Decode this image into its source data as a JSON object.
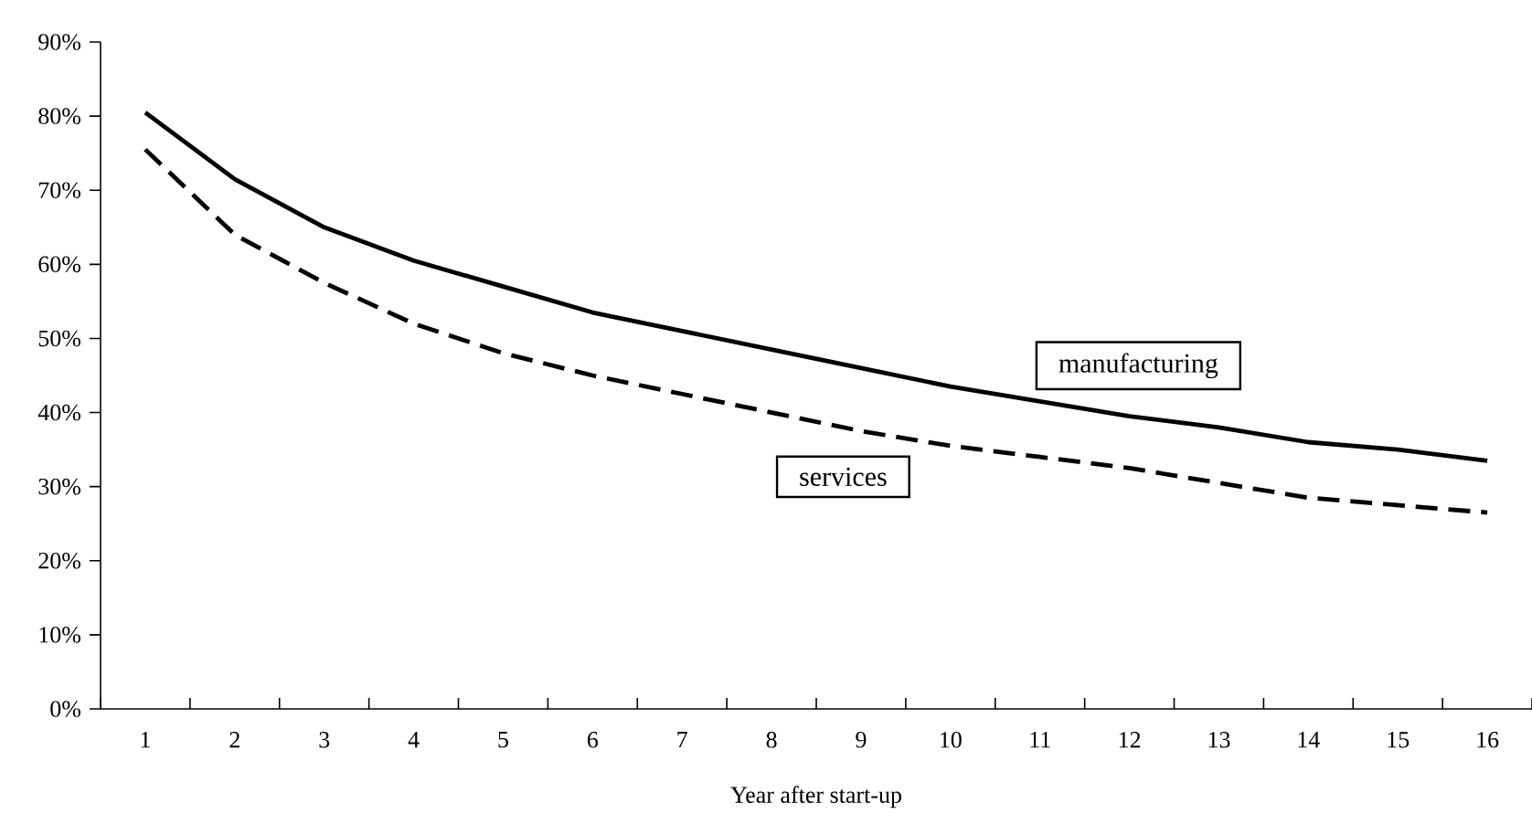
{
  "chart_data": {
    "type": "line",
    "xlabel": "Year after start-up",
    "categories": [
      "1",
      "2",
      "3",
      "4",
      "5",
      "6",
      "7",
      "8",
      "9",
      "10",
      "11",
      "12",
      "13",
      "14",
      "15",
      "16"
    ],
    "series": [
      {
        "name": "manufacturing",
        "color": "#000000",
        "line_style": "solid",
        "values": [
          80.5,
          71.5,
          65,
          60.5,
          57,
          53.5,
          51,
          48.5,
          46,
          43.5,
          41.5,
          39.5,
          38,
          36,
          35,
          33.5
        ]
      },
      {
        "name": "services",
        "color": "#000000",
        "line_style": "dashed",
        "values": [
          75.5,
          64,
          57.5,
          52,
          48,
          45,
          42.5,
          40,
          37.5,
          35.5,
          34,
          32.5,
          30.5,
          28.5,
          27.5,
          26.5
        ]
      }
    ],
    "ylim": [
      0,
      90
    ],
    "yticks": [
      {
        "value": 0,
        "label": "0%"
      },
      {
        "value": 10,
        "label": "10%"
      },
      {
        "value": 20,
        "label": "20%"
      },
      {
        "value": 30,
        "label": "30%"
      },
      {
        "value": 40,
        "label": "40%"
      },
      {
        "value": 50,
        "label": "50%"
      },
      {
        "value": 60,
        "label": "60%"
      },
      {
        "value": 70,
        "label": "70%"
      },
      {
        "value": 80,
        "label": "80%"
      },
      {
        "value": 90,
        "label": "90%"
      }
    ],
    "grid": false,
    "legend": false,
    "marker": "none"
  }
}
